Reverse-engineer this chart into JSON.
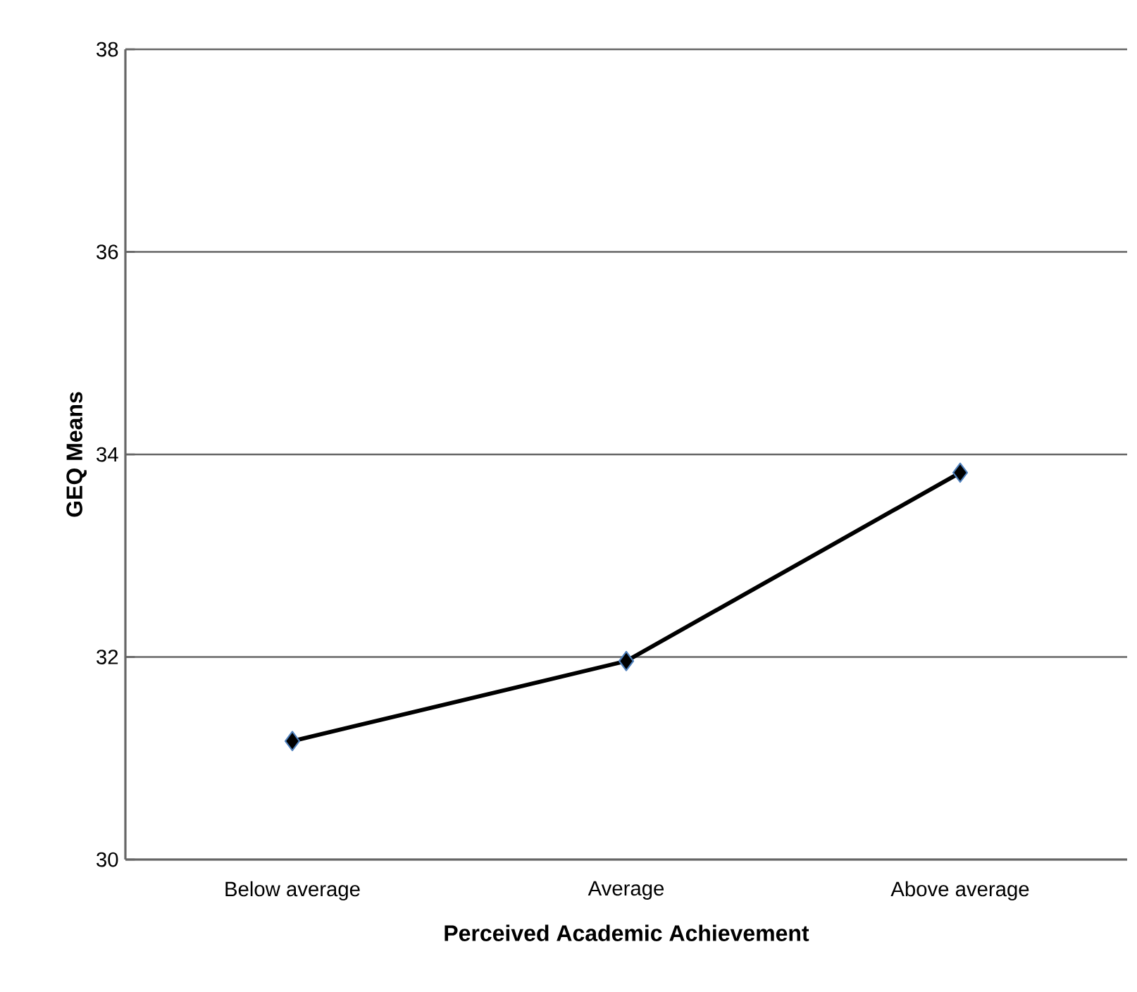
{
  "chart_data": {
    "type": "line",
    "xlabel": "Perceived Academic Achievement",
    "ylabel": "GEQ Means",
    "categories": [
      "Below average",
      "Average",
      "Above average"
    ],
    "series": [
      {
        "color": "#000000",
        "values": [
          31.17,
          31.96,
          33.82
        ]
      }
    ],
    "ylim": [
      30,
      38
    ],
    "yticks": [
      30,
      32,
      34,
      36,
      38
    ],
    "grid": "y",
    "marker": "diamond",
    "line_style": "solid",
    "legend": false
  }
}
